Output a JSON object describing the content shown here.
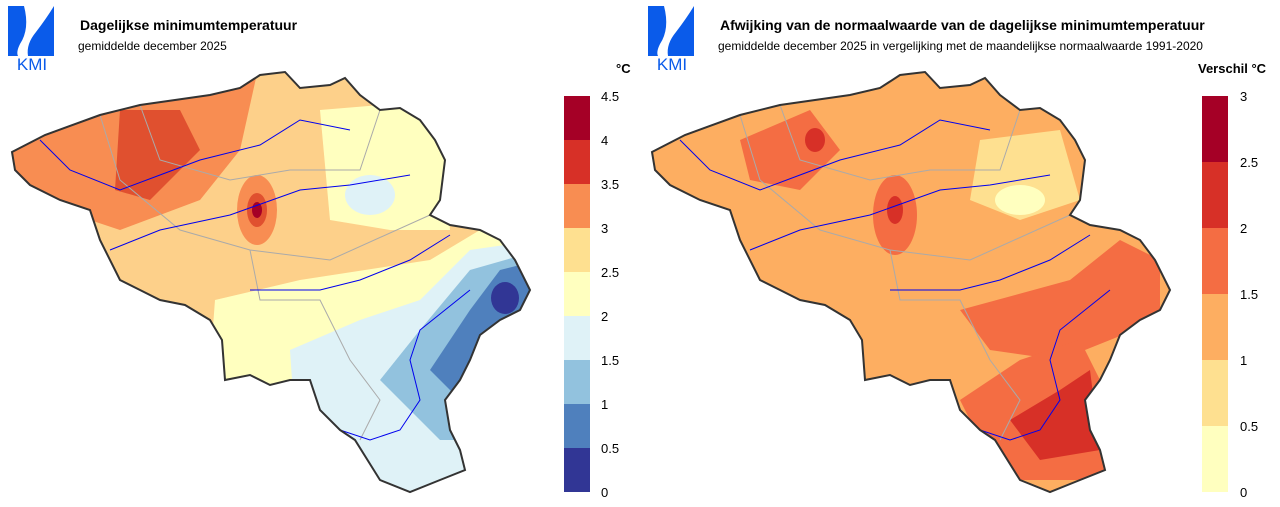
{
  "logo_text": "KMI",
  "panels": [
    {
      "title": "Dagelijkse minimumtemperatuur",
      "subtitle": "gemiddelde december 2025",
      "unit": "°C",
      "legend": {
        "ticks": [
          "4.5",
          "4",
          "3.5",
          "3",
          "2.5",
          "2",
          "1.5",
          "1",
          "0.5",
          "0"
        ],
        "colors": [
          "#a50026",
          "#d73027",
          "#f88d52",
          "#fee090",
          "#ffffbf",
          "#dff2f7",
          "#92c2de",
          "#4f80bd",
          "#313695"
        ]
      }
    },
    {
      "title": "Afwijking van de normaalwaarde van de dagelijkse minimumtemperatuur",
      "subtitle": "gemiddelde december 2025 in vergelijking met de maandelijkse normaalwaarde 1991-2020",
      "unit": "Verschil °C",
      "legend": {
        "ticks": [
          "3",
          "2.5",
          "2",
          "1.5",
          "1",
          "0.5",
          "0"
        ],
        "colors": [
          "#a50026",
          "#d73027",
          "#f46d43",
          "#fdae61",
          "#fee090",
          "#ffffbf"
        ]
      }
    }
  ]
}
